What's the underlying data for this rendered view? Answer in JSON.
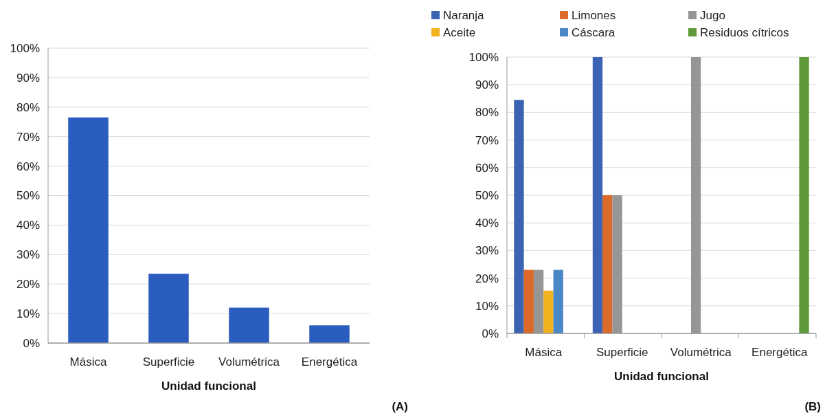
{
  "chart_data": [
    {
      "type": "bar",
      "xlabel": "Unidad funcional",
      "categories": [
        "Másica",
        "Superficie",
        "Volumétrica",
        "Energética"
      ],
      "values": [
        76.5,
        23.5,
        12,
        6
      ],
      "color": "#2b5cc0",
      "ylim": [
        0,
        100
      ],
      "yticks": [
        {
          "value": 0,
          "label": "0%"
        },
        {
          "value": 10,
          "label": "10%"
        },
        {
          "value": 20,
          "label": "20%"
        },
        {
          "value": 30,
          "label": "30%"
        },
        {
          "value": 40,
          "label": "40%"
        },
        {
          "value": 50,
          "label": "50%"
        },
        {
          "value": 60,
          "label": "60%"
        },
        {
          "value": 70,
          "label": "70%"
        },
        {
          "value": 80,
          "label": "80%"
        },
        {
          "value": 90,
          "label": "90%"
        },
        {
          "value": 100,
          "label": "100%"
        }
      ],
      "grid": "y",
      "annotations": [
        "(A)"
      ]
    },
    {
      "type": "bar",
      "xlabel": "Unidad funcional",
      "categories": [
        "Másica",
        "Superficie",
        "Volumétrica",
        "Energética"
      ],
      "series": [
        {
          "name": "Naranja",
          "color": "#3a63b4",
          "values": [
            84.5,
            100,
            null,
            null
          ]
        },
        {
          "name": "Limones",
          "color": "#dc6a2a",
          "values": [
            23,
            50,
            null,
            null
          ]
        },
        {
          "name": "Jugo",
          "color": "#969696",
          "values": [
            23,
            50,
            100,
            null
          ]
        },
        {
          "name": "Aceite",
          "color": "#f0b21e",
          "values": [
            15.5,
            null,
            null,
            null
          ]
        },
        {
          "name": "Cáscara",
          "color": "#4a87c4",
          "values": [
            23,
            null,
            null,
            null
          ]
        },
        {
          "name": "Residuos cítricos",
          "color": "#5e9a3a",
          "values": [
            null,
            null,
            null,
            100
          ]
        }
      ],
      "ylim": [
        0,
        100
      ],
      "yticks": [
        {
          "value": 0,
          "label": "0%"
        },
        {
          "value": 10,
          "label": "10%"
        },
        {
          "value": 20,
          "label": "20%"
        },
        {
          "value": 30,
          "label": "30%"
        },
        {
          "value": 40,
          "label": "40%"
        },
        {
          "value": 50,
          "label": "50%"
        },
        {
          "value": 60,
          "label": "60%"
        },
        {
          "value": 70,
          "label": "70%"
        },
        {
          "value": 80,
          "label": "80%"
        },
        {
          "value": 90,
          "label": "90%"
        },
        {
          "value": 100,
          "label": "100%"
        }
      ],
      "grid": "y",
      "legend": "top",
      "annotations": [
        "(B)"
      ]
    }
  ]
}
